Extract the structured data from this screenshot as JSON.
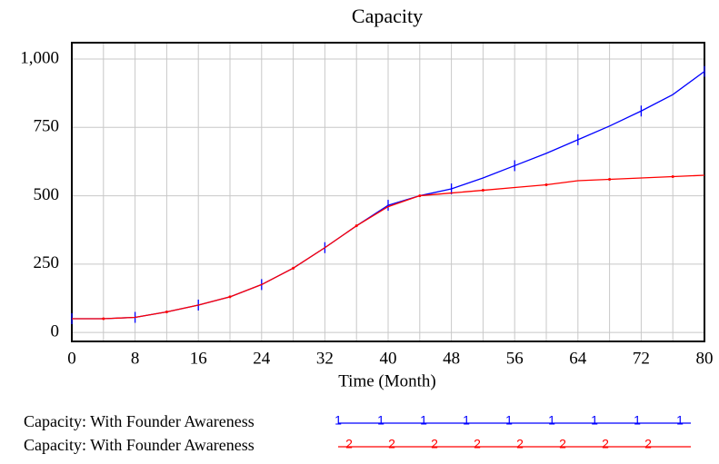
{
  "chart_data": {
    "type": "line",
    "title": "Capacity",
    "x_label": "Time (Month)",
    "x": [
      0,
      4,
      8,
      12,
      16,
      20,
      24,
      28,
      32,
      36,
      40,
      44,
      48,
      52,
      56,
      60,
      64,
      68,
      72,
      76,
      80
    ],
    "series": [
      {
        "name": "Capacity: With Founder Awareness",
        "marker": "1",
        "color": "#0000ff",
        "values": [
          50,
          50,
          55,
          75,
          100,
          130,
          175,
          235,
          310,
          390,
          465,
          500,
          525,
          565,
          610,
          655,
          705,
          755,
          810,
          870,
          955
        ]
      },
      {
        "name": "Capacity: With Founder Awareness",
        "marker": "2",
        "color": "#ff0000",
        "values": [
          50,
          50,
          55,
          75,
          100,
          130,
          175,
          235,
          310,
          390,
          460,
          500,
          510,
          520,
          530,
          540,
          555,
          560,
          565,
          570,
          575
        ]
      }
    ],
    "xlim": [
      0,
      80
    ],
    "xticks": [
      0,
      8,
      16,
      24,
      32,
      40,
      48,
      56,
      64,
      72,
      80
    ],
    "xgrid": [
      4,
      12,
      20,
      28,
      36,
      44,
      52,
      60,
      68,
      76
    ],
    "ylim": [
      -33,
      1060
    ],
    "yticks": [
      0,
      250,
      500,
      750,
      {
        "value": 1000,
        "label": "1,000"
      }
    ],
    "grid": true
  }
}
